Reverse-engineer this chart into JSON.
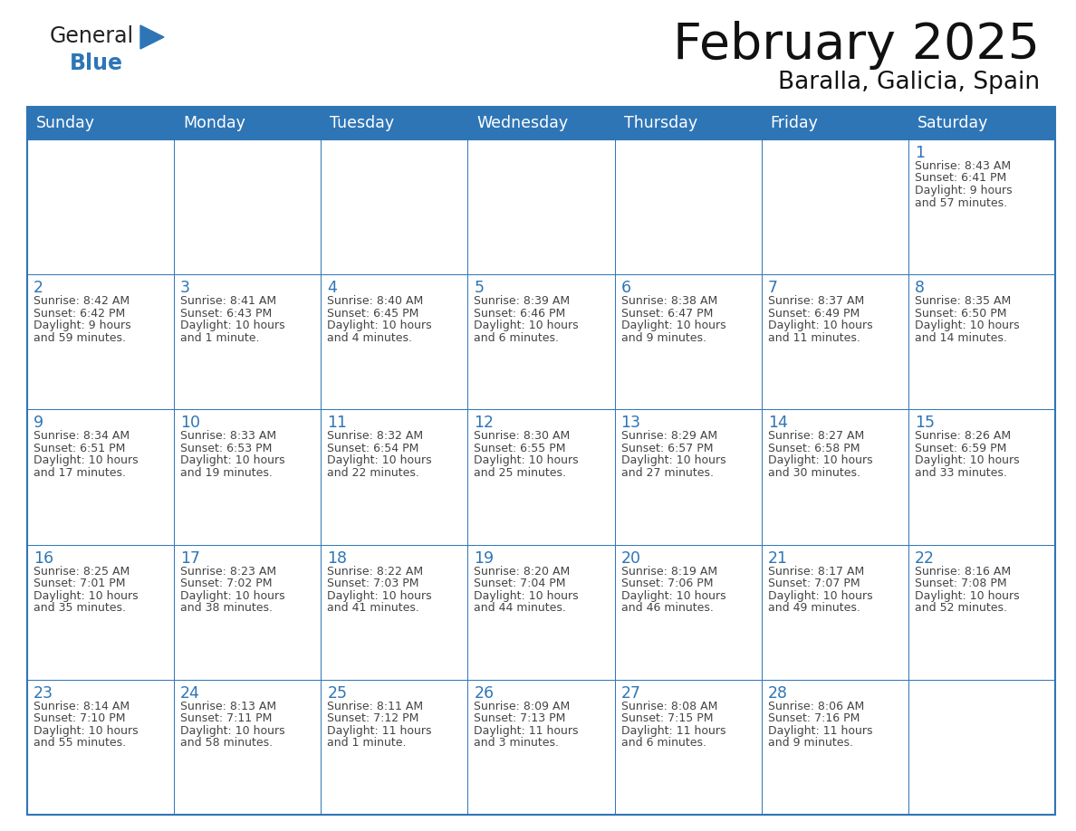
{
  "title": "February 2025",
  "subtitle": "Baralla, Galicia, Spain",
  "days_of_week": [
    "Sunday",
    "Monday",
    "Tuesday",
    "Wednesday",
    "Thursday",
    "Friday",
    "Saturday"
  ],
  "header_color": "#2E75B6",
  "header_text_color": "#FFFFFF",
  "cell_border_color": "#2E75B6",
  "day_num_color": "#2E75B6",
  "info_text_color": "#444444",
  "background_color": "#FFFFFF",
  "logo_general_color": "#222222",
  "logo_blue_color": "#2E75B6",
  "calendar_data": [
    [
      {
        "day": null,
        "sunrise": null,
        "sunset": null,
        "daylight": null
      },
      {
        "day": null,
        "sunrise": null,
        "sunset": null,
        "daylight": null
      },
      {
        "day": null,
        "sunrise": null,
        "sunset": null,
        "daylight": null
      },
      {
        "day": null,
        "sunrise": null,
        "sunset": null,
        "daylight": null
      },
      {
        "day": null,
        "sunrise": null,
        "sunset": null,
        "daylight": null
      },
      {
        "day": null,
        "sunrise": null,
        "sunset": null,
        "daylight": null
      },
      {
        "day": 1,
        "sunrise": "8:43 AM",
        "sunset": "6:41 PM",
        "daylight": "9 hours\nand 57 minutes."
      }
    ],
    [
      {
        "day": 2,
        "sunrise": "8:42 AM",
        "sunset": "6:42 PM",
        "daylight": "9 hours\nand 59 minutes."
      },
      {
        "day": 3,
        "sunrise": "8:41 AM",
        "sunset": "6:43 PM",
        "daylight": "10 hours\nand 1 minute."
      },
      {
        "day": 4,
        "sunrise": "8:40 AM",
        "sunset": "6:45 PM",
        "daylight": "10 hours\nand 4 minutes."
      },
      {
        "day": 5,
        "sunrise": "8:39 AM",
        "sunset": "6:46 PM",
        "daylight": "10 hours\nand 6 minutes."
      },
      {
        "day": 6,
        "sunrise": "8:38 AM",
        "sunset": "6:47 PM",
        "daylight": "10 hours\nand 9 minutes."
      },
      {
        "day": 7,
        "sunrise": "8:37 AM",
        "sunset": "6:49 PM",
        "daylight": "10 hours\nand 11 minutes."
      },
      {
        "day": 8,
        "sunrise": "8:35 AM",
        "sunset": "6:50 PM",
        "daylight": "10 hours\nand 14 minutes."
      }
    ],
    [
      {
        "day": 9,
        "sunrise": "8:34 AM",
        "sunset": "6:51 PM",
        "daylight": "10 hours\nand 17 minutes."
      },
      {
        "day": 10,
        "sunrise": "8:33 AM",
        "sunset": "6:53 PM",
        "daylight": "10 hours\nand 19 minutes."
      },
      {
        "day": 11,
        "sunrise": "8:32 AM",
        "sunset": "6:54 PM",
        "daylight": "10 hours\nand 22 minutes."
      },
      {
        "day": 12,
        "sunrise": "8:30 AM",
        "sunset": "6:55 PM",
        "daylight": "10 hours\nand 25 minutes."
      },
      {
        "day": 13,
        "sunrise": "8:29 AM",
        "sunset": "6:57 PM",
        "daylight": "10 hours\nand 27 minutes."
      },
      {
        "day": 14,
        "sunrise": "8:27 AM",
        "sunset": "6:58 PM",
        "daylight": "10 hours\nand 30 minutes."
      },
      {
        "day": 15,
        "sunrise": "8:26 AM",
        "sunset": "6:59 PM",
        "daylight": "10 hours\nand 33 minutes."
      }
    ],
    [
      {
        "day": 16,
        "sunrise": "8:25 AM",
        "sunset": "7:01 PM",
        "daylight": "10 hours\nand 35 minutes."
      },
      {
        "day": 17,
        "sunrise": "8:23 AM",
        "sunset": "7:02 PM",
        "daylight": "10 hours\nand 38 minutes."
      },
      {
        "day": 18,
        "sunrise": "8:22 AM",
        "sunset": "7:03 PM",
        "daylight": "10 hours\nand 41 minutes."
      },
      {
        "day": 19,
        "sunrise": "8:20 AM",
        "sunset": "7:04 PM",
        "daylight": "10 hours\nand 44 minutes."
      },
      {
        "day": 20,
        "sunrise": "8:19 AM",
        "sunset": "7:06 PM",
        "daylight": "10 hours\nand 46 minutes."
      },
      {
        "day": 21,
        "sunrise": "8:17 AM",
        "sunset": "7:07 PM",
        "daylight": "10 hours\nand 49 minutes."
      },
      {
        "day": 22,
        "sunrise": "8:16 AM",
        "sunset": "7:08 PM",
        "daylight": "10 hours\nand 52 minutes."
      }
    ],
    [
      {
        "day": 23,
        "sunrise": "8:14 AM",
        "sunset": "7:10 PM",
        "daylight": "10 hours\nand 55 minutes."
      },
      {
        "day": 24,
        "sunrise": "8:13 AM",
        "sunset": "7:11 PM",
        "daylight": "10 hours\nand 58 minutes."
      },
      {
        "day": 25,
        "sunrise": "8:11 AM",
        "sunset": "7:12 PM",
        "daylight": "11 hours\nand 1 minute."
      },
      {
        "day": 26,
        "sunrise": "8:09 AM",
        "sunset": "7:13 PM",
        "daylight": "11 hours\nand 3 minutes."
      },
      {
        "day": 27,
        "sunrise": "8:08 AM",
        "sunset": "7:15 PM",
        "daylight": "11 hours\nand 6 minutes."
      },
      {
        "day": 28,
        "sunrise": "8:06 AM",
        "sunset": "7:16 PM",
        "daylight": "11 hours\nand 9 minutes."
      },
      {
        "day": null,
        "sunrise": null,
        "sunset": null,
        "daylight": null
      }
    ]
  ]
}
